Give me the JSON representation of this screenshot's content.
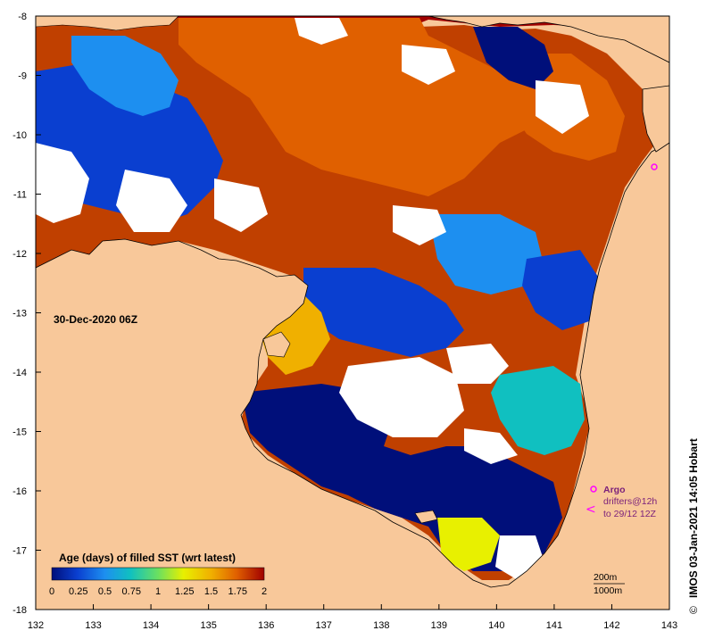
{
  "map": {
    "date_label": "30-Dec-2020 06Z",
    "credit": "IMOS 03-Jan-2021 14:05 Hobart",
    "copyright_symbol": "©",
    "x_ticks": [
      "132",
      "133",
      "134",
      "135",
      "136",
      "137",
      "138",
      "139",
      "140",
      "141",
      "142",
      "143"
    ],
    "y_ticks": [
      "-8",
      "-9",
      "-10",
      "-11",
      "-12",
      "-13",
      "-14",
      "-15",
      "-16",
      "-17",
      "-18"
    ],
    "colorbar": {
      "title": "Age (days) of filled SST (wrt latest)",
      "ticks": [
        "0",
        "0.25",
        "0.5",
        "0.75",
        "1",
        "1.25",
        "1.5",
        "1.75",
        "2"
      ]
    },
    "legend": {
      "argo": "Argo",
      "drifters_line1": "drifters@12h",
      "drifters_line2": "to 29/12 12Z"
    },
    "contours": {
      "c200": "200m",
      "c1000": "1000m"
    },
    "colors": {
      "land": "#f8c89a",
      "nodata": "#ffffff",
      "age_0": "#000f7a",
      "age_025": "#0a3fd0",
      "age_05": "#1d8ff0",
      "age_075": "#10c0c0",
      "age_1": "#6ae060",
      "age_125": "#e8f000",
      "age_15": "#f0b000",
      "age_175": "#e06000",
      "age_2": "#a00000",
      "argo_marker": "#ff00ff"
    }
  }
}
